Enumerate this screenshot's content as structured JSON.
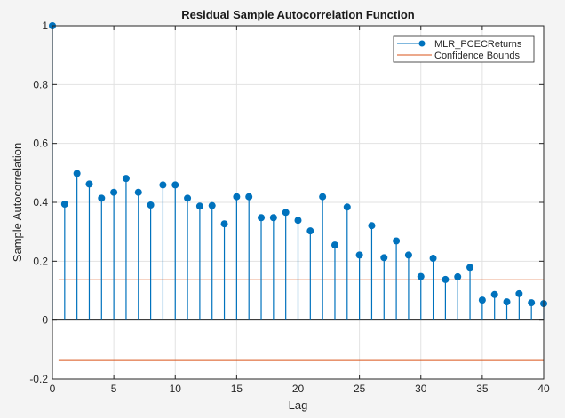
{
  "chart_data": {
    "type": "stem",
    "title": "Residual Sample Autocorrelation Function",
    "xlabel": "Lag",
    "ylabel": "Sample Autocorrelation",
    "xlim": [
      0,
      40
    ],
    "ylim": [
      -0.2,
      1
    ],
    "xticks": [
      0,
      5,
      10,
      15,
      20,
      25,
      30,
      35,
      40
    ],
    "xtick_labels": [
      "0",
      "5",
      "10",
      "15",
      "20",
      "25",
      "30",
      "35",
      "40"
    ],
    "yticks": [
      -0.2,
      0,
      0.2,
      0.4,
      0.6,
      0.8,
      1
    ],
    "ytick_labels": [
      "-0.2",
      "0",
      "0.2",
      "0.4",
      "0.6",
      "0.8",
      "1"
    ],
    "grid": true,
    "legend_position": "northeast",
    "series": [
      {
        "name": "MLR_PCECReturns",
        "color": "#0072BD",
        "x": [
          0,
          1,
          2,
          3,
          4,
          5,
          6,
          7,
          8,
          9,
          10,
          11,
          12,
          13,
          14,
          15,
          16,
          17,
          18,
          19,
          20,
          21,
          22,
          23,
          24,
          25,
          26,
          27,
          28,
          29,
          30,
          31,
          32,
          33,
          34,
          35,
          36,
          37,
          38,
          39,
          40
        ],
        "values": [
          1.0,
          0.394,
          0.498,
          0.462,
          0.414,
          0.434,
          0.481,
          0.434,
          0.391,
          0.459,
          0.459,
          0.414,
          0.387,
          0.389,
          0.327,
          0.419,
          0.419,
          0.348,
          0.348,
          0.366,
          0.339,
          0.303,
          0.419,
          0.255,
          0.384,
          0.221,
          0.321,
          0.212,
          0.269,
          0.221,
          0.148,
          0.21,
          0.138,
          0.147,
          0.179,
          0.068,
          0.087,
          0.062,
          0.09,
          0.059,
          0.056
        ]
      },
      {
        "name": "Confidence Bounds",
        "color": "#D95319",
        "upper": 0.137,
        "lower": -0.137,
        "x_range": [
          0.5,
          40
        ]
      }
    ]
  },
  "legend": {
    "items": [
      "MLR_PCECReturns",
      "Confidence Bounds"
    ]
  }
}
